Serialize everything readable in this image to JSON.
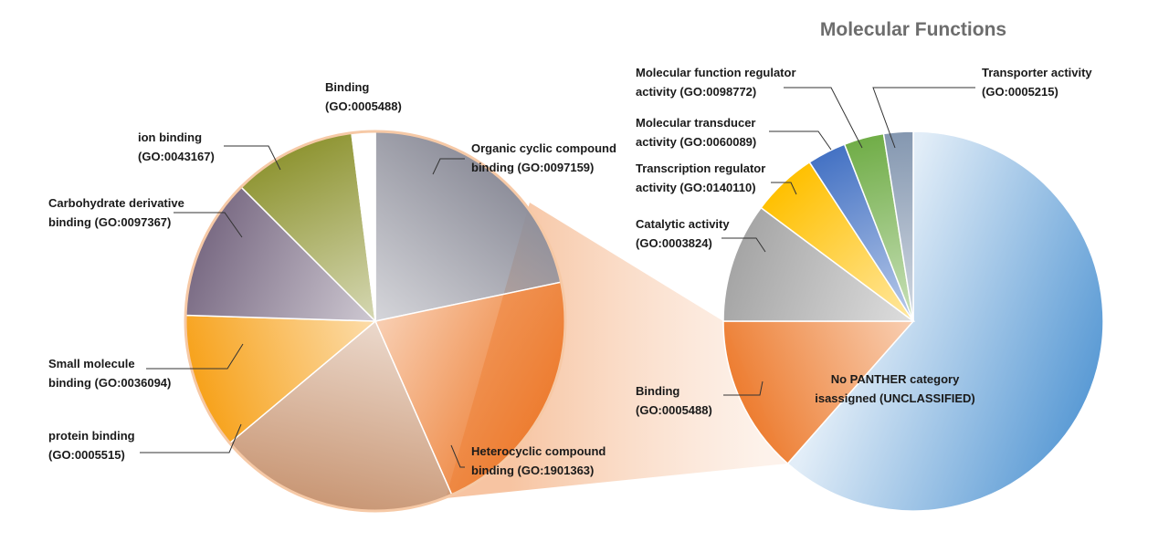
{
  "chart_data": [
    {
      "type": "pie",
      "title": "Molecular Functions",
      "slices": [
        {
          "name": "No PANTHER category isassigned (UNCLASSIFIED)",
          "value": 61.5,
          "color": "#5b9bd5"
        },
        {
          "name": "Binding (GO:0005488)",
          "value": 13.5,
          "color": "#ed7d31"
        },
        {
          "name": "Catalytic activity (GO:0003824)",
          "value": 10.2,
          "color": "#a5a5a5"
        },
        {
          "name": "Transcription regulator activity (GO:0140110)",
          "value": 5.6,
          "color": "#ffc000"
        },
        {
          "name": "Molecular transducer activity (GO:0060089)",
          "value": 3.3,
          "color": "#4472c4"
        },
        {
          "name": "Molecular function regulator activity (GO:0098772)",
          "value": 3.4,
          "color": "#70ad47"
        },
        {
          "name": "Transporter activity (GO:0005215)",
          "value": 2.5,
          "color": "#8497b0"
        }
      ],
      "labels": [
        {
          "lines": [
            "No PANTHER category",
            "isassigned (UNCLASSIFIED)"
          ]
        },
        {
          "lines": [
            "Binding",
            "(GO:0005488)"
          ]
        },
        {
          "lines": [
            "Catalytic activity",
            "(GO:0003824)"
          ]
        },
        {
          "lines": [
            "Transcription regulator",
            "activity (GO:0140110)"
          ]
        },
        {
          "lines": [
            "Molecular transducer",
            "activity (GO:0060089)"
          ]
        },
        {
          "lines": [
            "Molecular function regulator",
            "activity (GO:0098772)"
          ]
        },
        {
          "lines": [
            "Transporter activity",
            "(GO:0005215)"
          ]
        }
      ]
    },
    {
      "type": "pie",
      "title": "",
      "slices": [
        {
          "name": "Organic cyclic compound binding (GO:0097159)",
          "value": 21.7,
          "color": "#8e8f9b"
        },
        {
          "name": "Heterocyclic compound binding (GO:1901363)",
          "value": 21.7,
          "color": "#ed7d31"
        },
        {
          "name": "protein binding (GO:0005515)",
          "value": 20.5,
          "color": "#c99775"
        },
        {
          "name": "Small molecule binding (GO:0036094)",
          "value": 11.6,
          "color": "#f7a21b"
        },
        {
          "name": "Carbohydrate derivative binding (GO:0097367)",
          "value": 12.0,
          "color": "#7a6b84"
        },
        {
          "name": "ion binding (GO:0043167)",
          "value": 10.5,
          "color": "#8f9533"
        },
        {
          "name": "Binding (GO:0005488)",
          "value": 2.0,
          "color": "#ffffff"
        }
      ],
      "labels": [
        {
          "lines": [
            "Organic cyclic compound",
            "binding (GO:0097159)"
          ]
        },
        {
          "lines": [
            "Heterocyclic compound",
            "binding (GO:1901363)"
          ]
        },
        {
          "lines": [
            "protein binding",
            "(GO:0005515)"
          ]
        },
        {
          "lines": [
            "Small molecule",
            "binding (GO:0036094)"
          ]
        },
        {
          "lines": [
            "Carbohydrate derivative",
            "binding (GO:0097367)"
          ]
        },
        {
          "lines": [
            "ion binding",
            "(GO:0043167)"
          ]
        },
        {
          "lines": [
            "Binding",
            "(GO:0005488)"
          ]
        }
      ]
    }
  ]
}
